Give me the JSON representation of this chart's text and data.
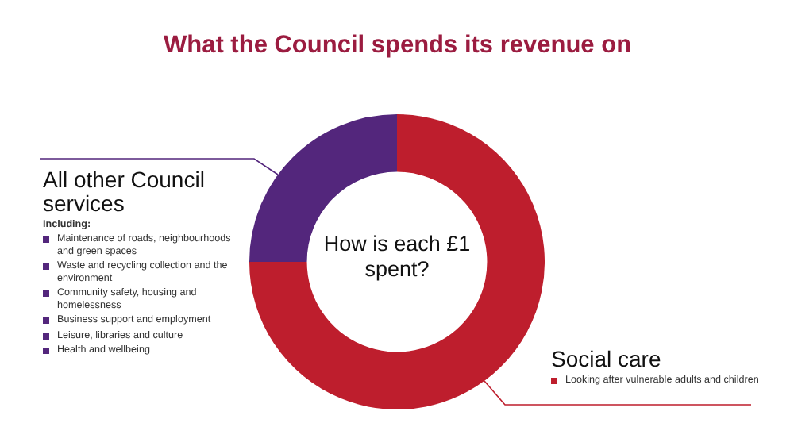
{
  "chart_data": {
    "type": "donut",
    "title": "What the Council spends its revenue on",
    "categories": [
      "Social care",
      "All other Council services"
    ],
    "values": [
      75,
      25
    ],
    "colors": [
      "#be1e2d",
      "#53267c"
    ],
    "legend": false,
    "annotations": [
      "How is each £1 spent?",
      "Including:",
      "Maintenance of roads, neighbourhoods and green spaces",
      "Waste and recycling collection and the environment",
      "Community safety, housing and homelessness",
      "Business support and employment",
      "Leisure, libraries and culture",
      "Health and wellbeing",
      "Looking after vulnerable adults and children"
    ]
  }
}
